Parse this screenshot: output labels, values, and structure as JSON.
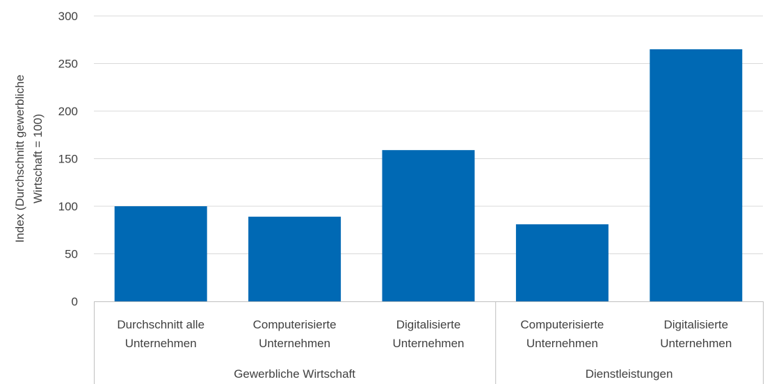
{
  "chart_data": {
    "type": "bar",
    "groups": [
      {
        "label": "Gewerbliche Wirtschaft",
        "categories": [
          [
            "Durchschnitt alle",
            "Unternehmen"
          ],
          [
            "Computerisierte",
            "Unternehmen"
          ],
          [
            "Digitalisierte",
            "Unternehmen"
          ]
        ],
        "values": [
          100,
          89,
          159
        ]
      },
      {
        "label": "Dienstleistungen",
        "categories": [
          [
            "Computerisierte",
            "Unternehmen"
          ],
          [
            "Digitalisierte",
            "Unternehmen"
          ]
        ],
        "values": [
          81,
          265
        ]
      }
    ],
    "ylabel_lines": [
      "Index (Durchschnitt gewerbliche",
      "Wirtschaft = 100)"
    ],
    "ylim": [
      0,
      300
    ],
    "yticks": [
      0,
      50,
      100,
      150,
      200,
      250,
      300
    ],
    "grid": true,
    "bar_color": "#0069b4"
  }
}
